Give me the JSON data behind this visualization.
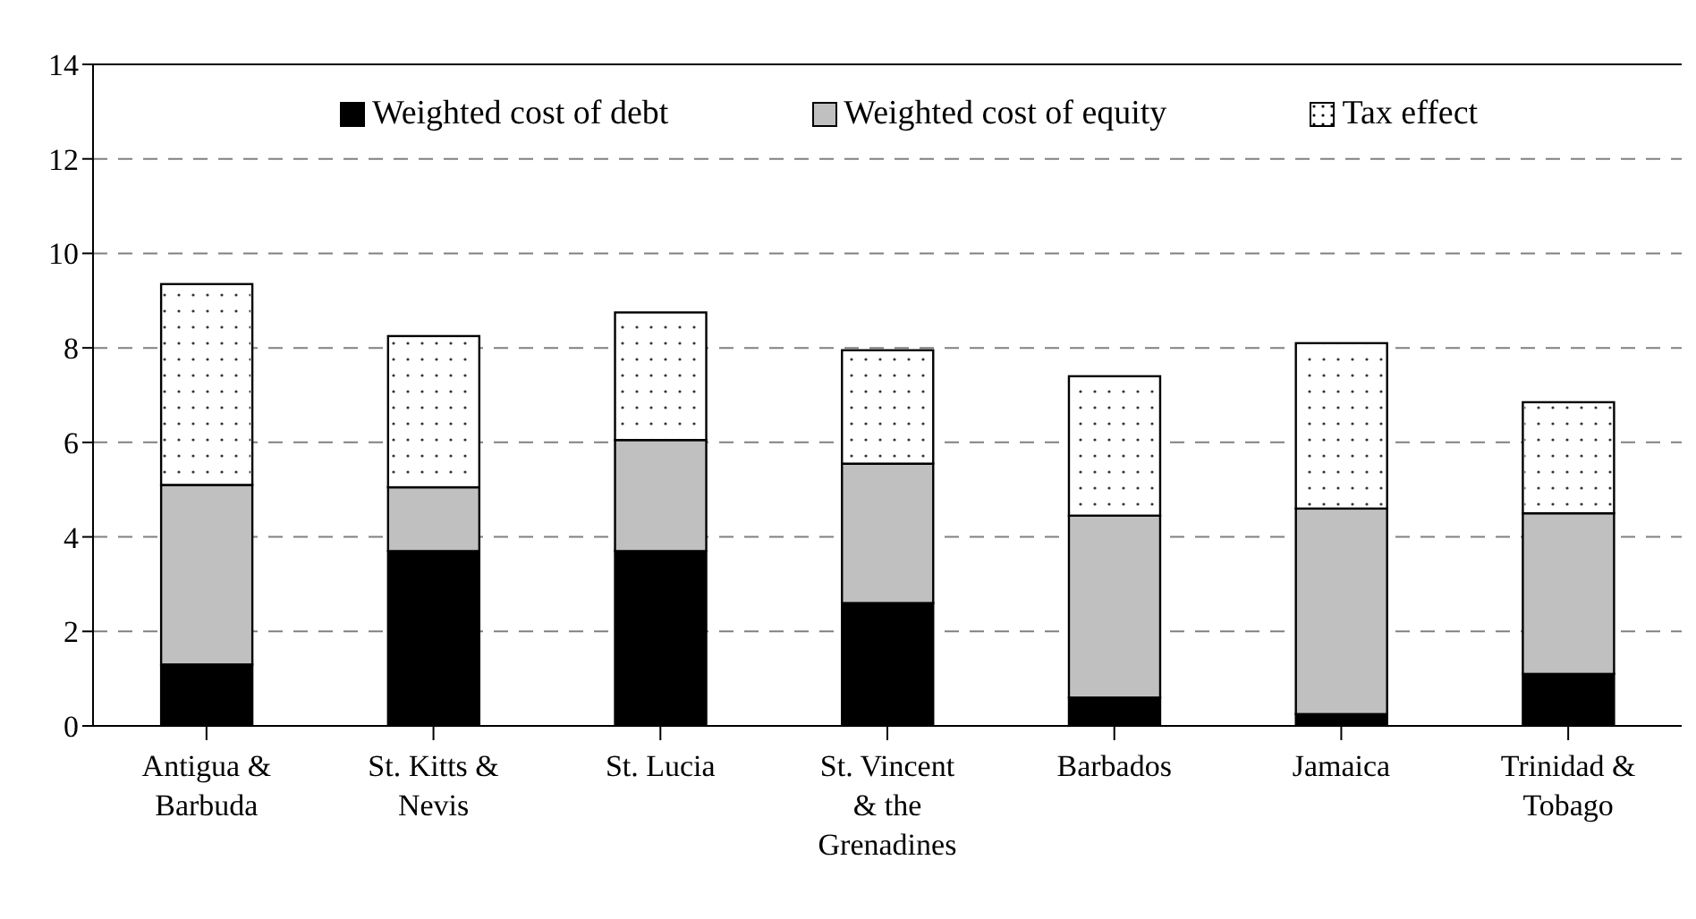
{
  "chart_data": {
    "type": "bar",
    "stacked": true,
    "categories": [
      "Antigua & Barbuda",
      "St. Kitts & Nevis",
      "St. Lucia",
      "St. Vincent & the Grenadines",
      "Barbados",
      "Jamaica",
      "Trinidad & Tobago"
    ],
    "series": [
      {
        "name": "Weighted cost of debt",
        "color": "#000000",
        "values": [
          1.3,
          3.7,
          3.7,
          2.6,
          0.6,
          0.25,
          1.1
        ]
      },
      {
        "name": "Weighted cost of equity",
        "color": "#c0c0c0",
        "values": [
          3.8,
          1.35,
          2.35,
          2.95,
          3.85,
          4.35,
          3.4
        ]
      },
      {
        "name": "Tax effect",
        "color": "#ffffff",
        "values": [
          4.25,
          3.2,
          2.7,
          2.4,
          2.95,
          3.5,
          2.35
        ]
      }
    ],
    "ylim": [
      0,
      14
    ],
    "yticks": [
      0,
      2,
      4,
      6,
      8,
      10,
      12,
      14
    ],
    "grid": "y",
    "legend": "top"
  }
}
